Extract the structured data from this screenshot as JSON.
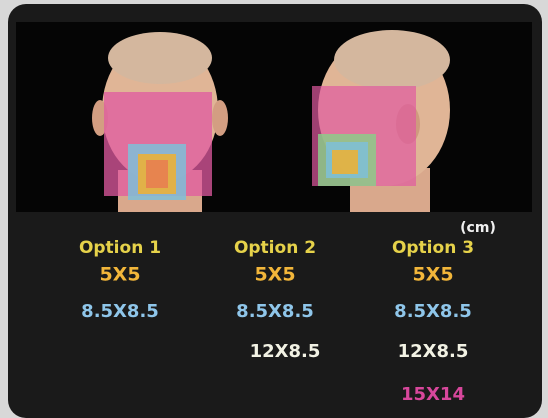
{
  "unit": "(cm)",
  "options": [
    {
      "label": "Option 1",
      "sizes": [
        "5X5",
        "8.5X8.5"
      ]
    },
    {
      "label": "Option 2",
      "sizes": [
        "5X5",
        "8.5X8.5",
        "12X8.5"
      ]
    },
    {
      "label": "Option 3",
      "sizes": [
        "5X5",
        "8.5X8.5",
        "12X8.5",
        "15X14"
      ]
    }
  ]
}
